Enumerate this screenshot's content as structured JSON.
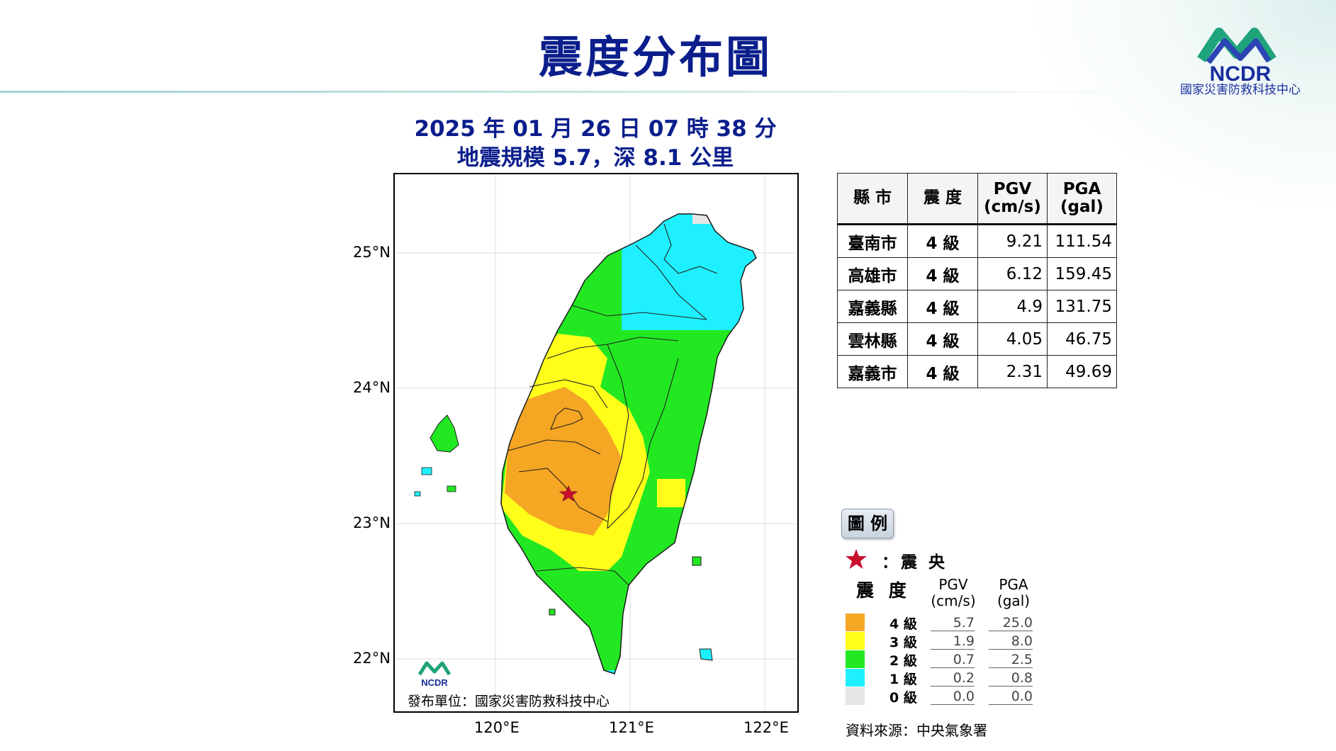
{
  "title": "震度分布圖",
  "logo": {
    "text": "NCDR",
    "subtitle": "國家災害防救科技中心"
  },
  "event": {
    "datetime": "2025 年 01 月 26 日 07 時 38 分",
    "magnitude_depth": "地震規模 5.7，深 8.1 公里"
  },
  "map": {
    "lat_labels": [
      "25°N",
      "24°N",
      "23°N",
      "22°N"
    ],
    "lon_labels": [
      "120°E",
      "121°E",
      "122°E"
    ],
    "publisher": "發布單位：國家災害防救科技中心",
    "logo_text": "NCDR"
  },
  "table": {
    "headers": {
      "city": "縣 市",
      "intensity": "震 度",
      "pgv": "PGV",
      "pgv_unit": "(cm/s)",
      "pga": "PGA",
      "pga_unit": "(gal)"
    },
    "rows": [
      {
        "city": "臺南市",
        "intensity": "4 級",
        "pgv": "9.21",
        "pga": "111.54"
      },
      {
        "city": "高雄市",
        "intensity": "4 級",
        "pgv": "6.12",
        "pga": "159.45"
      },
      {
        "city": "嘉義縣",
        "intensity": "4 級",
        "pgv": "4.9",
        "pga": "131.75"
      },
      {
        "city": "雲林縣",
        "intensity": "4 級",
        "pgv": "4.05",
        "pga": "46.75"
      },
      {
        "city": "嘉義市",
        "intensity": "4 級",
        "pgv": "2.31",
        "pga": "49.69"
      }
    ]
  },
  "legend": {
    "title": "圖 例",
    "epicenter": "：震 央",
    "intensity_header": "震 度",
    "pgv_header": "PGV",
    "pgv_unit": "(cm/s)",
    "pga_header": "PGA",
    "pga_unit": "(gal)",
    "items": [
      {
        "label": "4 級",
        "pgv": "5.7",
        "pga": "25.0",
        "color": "#f5a623"
      },
      {
        "label": "3 級",
        "pgv": "1.9",
        "pga": "8.0",
        "color": "#ffff1a"
      },
      {
        "label": "2 級",
        "pgv": "0.7",
        "pga": "2.5",
        "color": "#22e822"
      },
      {
        "label": "1 級",
        "pgv": "0.2",
        "pga": "0.8",
        "color": "#1ff0ff"
      },
      {
        "label": "0 級",
        "pgv": "0.0",
        "pga": "0.0",
        "color": "#e6e6e6"
      }
    ],
    "source": "資料來源：中央氣象署"
  },
  "colors": {
    "title": "#0b1e8c",
    "level4": "#f5a623",
    "level3": "#ffff1a",
    "level2": "#22e822",
    "level1": "#1ff0ff",
    "level0": "#e6e6e6",
    "epicenter": "#c8102e"
  }
}
